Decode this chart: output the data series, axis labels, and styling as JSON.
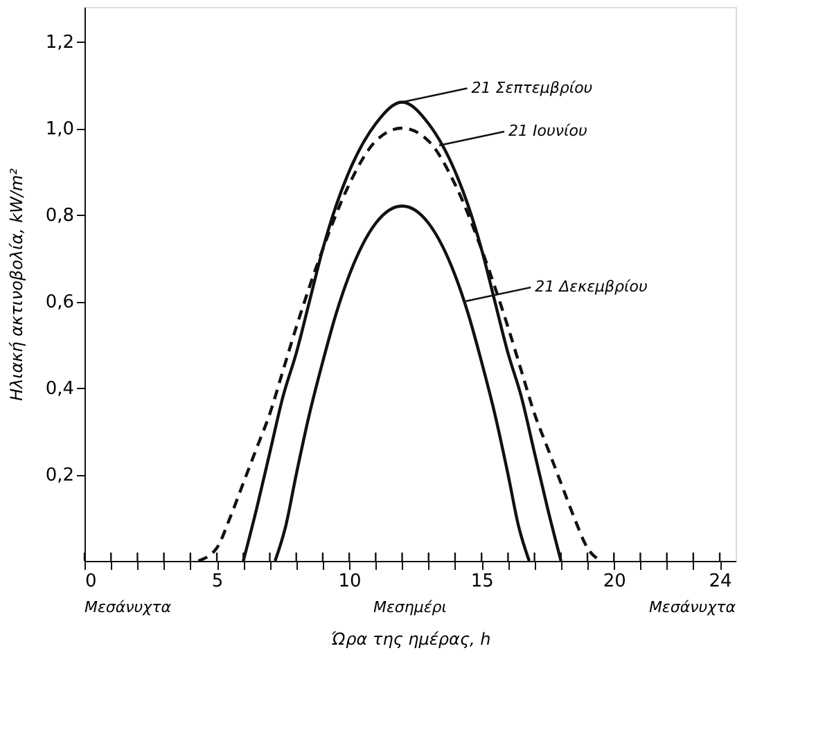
{
  "chart_data": {
    "type": "line",
    "xlabel": "Ώρα της ημέρας, h",
    "ylabel": "Ηλιακή ακτινοβολία, kW/m²",
    "xlim": [
      0,
      24.6
    ],
    "ylim": [
      0,
      1.28
    ],
    "xticks": [
      0,
      {
        "value": 1,
        "label": null
      },
      {
        "value": 2,
        "label": null
      },
      {
        "value": 3,
        "label": null
      },
      {
        "value": 4,
        "label": null
      },
      5,
      {
        "value": 6,
        "label": null
      },
      {
        "value": 7,
        "label": null
      },
      {
        "value": 8,
        "label": null
      },
      {
        "value": 9,
        "label": null
      },
      10,
      {
        "value": 11,
        "label": null
      },
      {
        "value": 12,
        "label": null
      },
      {
        "value": 13,
        "label": null
      },
      {
        "value": 14,
        "label": null
      },
      15,
      {
        "value": 16,
        "label": null
      },
      {
        "value": 17,
        "label": null
      },
      {
        "value": 18,
        "label": null
      },
      {
        "value": 19,
        "label": null
      },
      20,
      {
        "value": 21,
        "label": null
      },
      {
        "value": 22,
        "label": null
      },
      {
        "value": 23,
        "label": null
      },
      24
    ],
    "yticks": [
      {
        "value": 0.2,
        "label": "0,2"
      },
      {
        "value": 0.4,
        "label": "0,4"
      },
      {
        "value": 0.6,
        "label": "0,6"
      },
      {
        "value": 0.8,
        "label": "0,8"
      },
      {
        "value": 1.0,
        "label": "1,0"
      },
      {
        "value": 1.2,
        "label": "1,2"
      }
    ],
    "grid": false,
    "marker": "none",
    "series": [
      {
        "color": "#111111",
        "line_style": "solid",
        "x": [
          6,
          6.5,
          7,
          7.5,
          8,
          8.5,
          9,
          9.5,
          10,
          11,
          12,
          13,
          14,
          14.5,
          15,
          15.5,
          16,
          16.5,
          17,
          17.5,
          18
        ],
        "values": [
          0,
          0.12,
          0.25,
          0.38,
          0.48,
          0.6,
          0.72,
          0.82,
          0.9,
          1.01,
          1.06,
          1.01,
          0.9,
          0.82,
          0.72,
          0.6,
          0.48,
          0.38,
          0.25,
          0.12,
          0
        ]
      },
      {
        "color": "#111111",
        "line_style": "dashed",
        "x": [
          4.3,
          5,
          5.5,
          6,
          6.5,
          7,
          7.5,
          8,
          9,
          10,
          11,
          12,
          13,
          14,
          15,
          16,
          16.5,
          17,
          17.5,
          18,
          18.5,
          19,
          19.5
        ],
        "values": [
          0,
          0.03,
          0.1,
          0.18,
          0.26,
          0.34,
          0.44,
          0.54,
          0.72,
          0.87,
          0.97,
          1.0,
          0.97,
          0.87,
          0.72,
          0.54,
          0.44,
          0.34,
          0.26,
          0.18,
          0.1,
          0.03,
          0
        ]
      },
      {
        "color": "#111111",
        "line_style": "solid",
        "x": [
          7.2,
          7.6,
          8,
          8.5,
          9,
          9.5,
          10,
          11,
          12,
          13,
          14,
          14.5,
          15,
          15.5,
          16,
          16.4,
          16.8
        ],
        "values": [
          0,
          0.08,
          0.2,
          0.34,
          0.46,
          0.57,
          0.66,
          0.78,
          0.82,
          0.78,
          0.66,
          0.57,
          0.46,
          0.34,
          0.2,
          0.08,
          0
        ]
      }
    ],
    "annotations": [
      {
        "text": "21 Σεπτεμβρίου",
        "x": 12,
        "y": 1.06
      },
      {
        "text": "21 Ιουνίου",
        "x": 13.4,
        "y": 0.96
      },
      {
        "text": "21 Δεκεμβρίου",
        "x": 14.4,
        "y": 0.6
      },
      "Μεσάνυχτα",
      "Μεσημέρι",
      "Μεσάνυχτα"
    ]
  }
}
